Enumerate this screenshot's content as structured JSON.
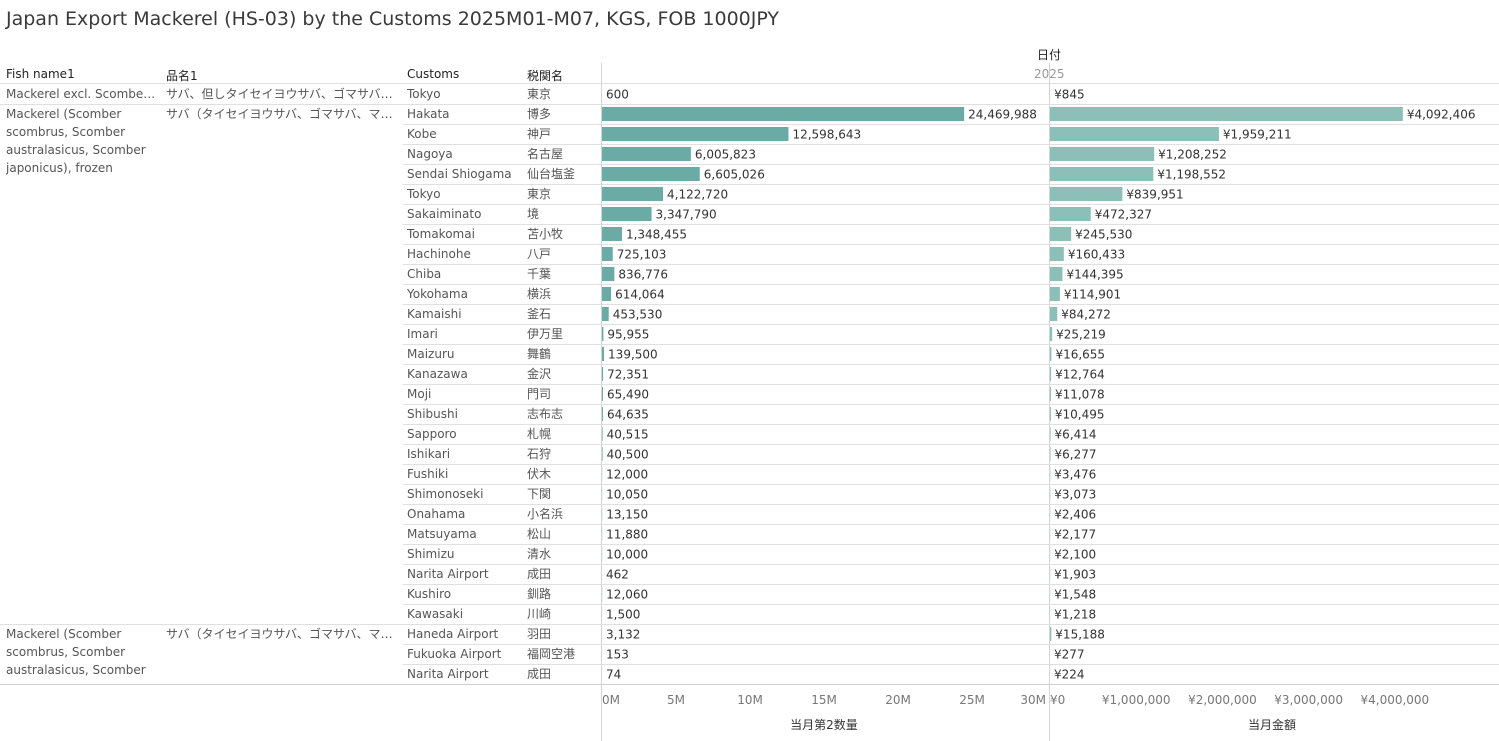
{
  "title": "Japan Export Mackerel (HS-03) by the Customs 2025M01-M07, KGS, FOB 1000JPY",
  "headers": {
    "fish_name": "Fish name1",
    "hinmei": "品名1",
    "customs": "Customs",
    "zeikan": "税関名",
    "date_label": "日付",
    "date_value": "2025"
  },
  "groups": [
    {
      "fish": "Mackerel excl. Scomber sc..",
      "hinmei": "サバ、但しタイセイヨウサバ、ゴマサバ、マサバを除..",
      "start": 0,
      "count": 1
    },
    {
      "fish": "Mackerel (Scomber scombrus, Scomber australasicus, Scomber japonicus), frozen",
      "hinmei": "サバ（タイセイヨウサバ、ゴマサバ、マサバ）、冷..",
      "start": 1,
      "count": 26
    },
    {
      "fish": "Mackerel (Scomber scombrus, Scomber australasicus, Scomber ja..",
      "hinmei": "サバ（タイセイヨウサバ、ゴマサバ、マサバ）、生..",
      "start": 27,
      "count": 3
    }
  ],
  "chart_data": {
    "type": "bar",
    "orientation": "horizontal",
    "categories": [
      "Tokyo",
      "Hakata",
      "Kobe",
      "Nagoya",
      "Sendai Shiogama",
      "Tokyo",
      "Sakaiminato",
      "Tomakomai",
      "Hachinohe",
      "Chiba",
      "Yokohama",
      "Kamaishi",
      "Imari",
      "Maizuru",
      "Kanazawa",
      "Moji",
      "Shibushi",
      "Sapporo",
      "Ishikari",
      "Fushiki",
      "Shimonoseki",
      "Onahama",
      "Matsuyama",
      "Shimizu",
      "Narita Airport",
      "Kushiro",
      "Kawasaki",
      "Haneda Airport",
      "Fukuoka Airport",
      "Narita Airport"
    ],
    "categories_ja": [
      "東京",
      "博多",
      "神戸",
      "名古屋",
      "仙台塩釜",
      "東京",
      "境",
      "苫小牧",
      "八戸",
      "千葉",
      "横浜",
      "釜石",
      "伊万里",
      "舞鶴",
      "金沢",
      "門司",
      "志布志",
      "札幌",
      "石狩",
      "伏木",
      "下関",
      "小名浜",
      "松山",
      "清水",
      "成田",
      "釧路",
      "川崎",
      "羽田",
      "福岡空港",
      "成田"
    ],
    "series": [
      {
        "name": "当月第2数量",
        "values": [
          600,
          24469988,
          12598643,
          6005823,
          6605026,
          4122720,
          3347790,
          1348455,
          725103,
          836776,
          614064,
          453530,
          95955,
          139500,
          72351,
          65490,
          64635,
          40515,
          40500,
          12000,
          10050,
          13150,
          11880,
          10000,
          462,
          12060,
          1500,
          3132,
          153,
          74
        ],
        "labels": [
          "600",
          "24,469,988",
          "12,598,643",
          "6,005,823",
          "6,605,026",
          "4,122,720",
          "3,347,790",
          "1,348,455",
          "725,103",
          "836,776",
          "614,064",
          "453,530",
          "95,955",
          "139,500",
          "72,351",
          "65,490",
          "64,635",
          "40,515",
          "40,500",
          "12,000",
          "10,050",
          "13,150",
          "11,880",
          "10,000",
          "462",
          "12,060",
          "1,500",
          "3,132",
          "153",
          "74"
        ],
        "xlim": [
          0,
          30000000
        ],
        "ticks": [
          0,
          5000000,
          10000000,
          15000000,
          20000000,
          25000000,
          30000000
        ],
        "tick_labels": [
          "0M",
          "5M",
          "10M",
          "15M",
          "20M",
          "25M",
          "30M"
        ],
        "xlabel": "当月第2数量",
        "color": "#6aaba5"
      },
      {
        "name": "当月金額",
        "values": [
          845,
          4092406,
          1959211,
          1208252,
          1198552,
          839951,
          472327,
          245530,
          160433,
          144395,
          114901,
          84272,
          25219,
          16655,
          12764,
          11078,
          10495,
          6414,
          6277,
          3476,
          3073,
          2406,
          2177,
          2100,
          1903,
          1548,
          1218,
          15188,
          277,
          224
        ],
        "labels": [
          "¥845",
          "¥4,092,406",
          "¥1,959,211",
          "¥1,208,252",
          "¥1,198,552",
          "¥839,951",
          "¥472,327",
          "¥245,530",
          "¥160,433",
          "¥144,395",
          "¥114,901",
          "¥84,272",
          "¥25,219",
          "¥16,655",
          "¥12,764",
          "¥11,078",
          "¥10,495",
          "¥6,414",
          "¥6,277",
          "¥3,476",
          "¥3,073",
          "¥2,406",
          "¥2,177",
          "¥2,100",
          "¥1,903",
          "¥1,548",
          "¥1,218",
          "¥15,188",
          "¥277",
          "¥224"
        ],
        "xlim": [
          0,
          5150000
        ],
        "ticks": [
          0,
          1000000,
          2000000,
          3000000,
          4000000
        ],
        "tick_labels": [
          "¥0",
          "¥1,000,000",
          "¥2,000,000",
          "¥3,000,000",
          "¥4,000,000"
        ],
        "xlabel": "当月金額",
        "color": "#8bbfb8"
      }
    ],
    "grid": false,
    "legend": "none"
  }
}
